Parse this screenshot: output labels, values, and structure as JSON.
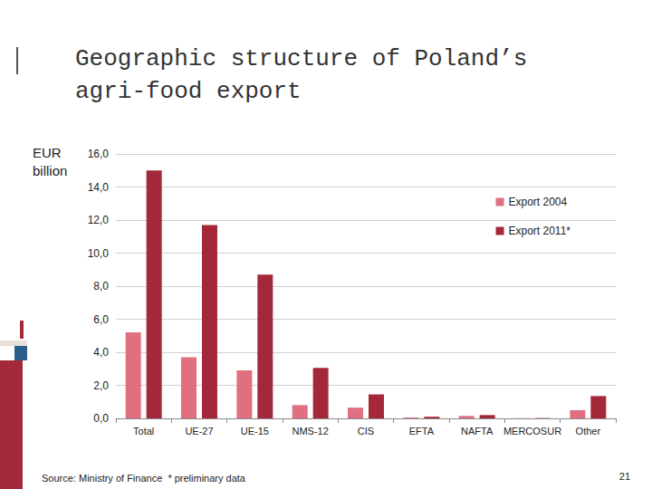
{
  "chart_data": {
    "type": "bar",
    "title": "Geographic structure of Poland’s agri-food export",
    "y_label": "EUR billion",
    "categories": [
      "Total",
      "UE-27",
      "UE-15",
      "NMS-12",
      "CIS",
      "EFTA",
      "NAFTA",
      "MERCOSUR",
      "Other"
    ],
    "series": [
      {
        "name": "Export 2004",
        "color": "#e07080",
        "values": [
          5.2,
          3.7,
          2.9,
          0.8,
          0.65,
          0.05,
          0.15,
          0.01,
          0.5
        ]
      },
      {
        "name": "Export 2011*",
        "color": "#a3283a",
        "values": [
          15.0,
          11.7,
          8.7,
          3.05,
          1.45,
          0.1,
          0.2,
          0.02,
          1.35
        ]
      }
    ],
    "ylim": [
      0,
      16
    ],
    "yticks": [
      {
        "value": 0,
        "label": "0,0"
      },
      {
        "value": 2,
        "label": "2,0"
      },
      {
        "value": 4,
        "label": "4,0"
      },
      {
        "value": 6,
        "label": "6,0"
      },
      {
        "value": 8,
        "label": "8,0"
      },
      {
        "value": 10,
        "label": "10,0"
      },
      {
        "value": 12,
        "label": "12,0"
      },
      {
        "value": 14,
        "label": "14,0"
      },
      {
        "value": 16,
        "label": "16,0"
      }
    ],
    "grid": true,
    "legend": "upper right",
    "annotations": [
      "Source: Ministry of Finance  * preliminary data",
      "21"
    ]
  }
}
